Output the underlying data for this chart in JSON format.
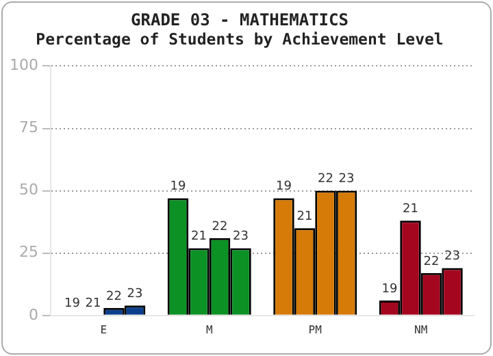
{
  "chart_data": {
    "type": "bar",
    "title": "GRADE 03 - MATHEMATICS",
    "subtitle": "Percentage of Students by Achievement Level",
    "categories": [
      "E",
      "M",
      "PM",
      "NM"
    ],
    "series": [
      {
        "name": "19",
        "colors": [
          "#0b3f8c",
          "#0b9124",
          "#d67b07",
          "#a5061f"
        ],
        "values": [
          0,
          47,
          47,
          6
        ]
      },
      {
        "name": "21",
        "colors": [
          "#0b3f8c",
          "#0b9124",
          "#d67b07",
          "#a5061f"
        ],
        "values": [
          0,
          27,
          35,
          38
        ]
      },
      {
        "name": "22",
        "colors": [
          "#0b3f8c",
          "#0b9124",
          "#d67b07",
          "#a5061f"
        ],
        "values": [
          3,
          31,
          50,
          17
        ]
      },
      {
        "name": "23",
        "colors": [
          "#0b3f8c",
          "#0b9124",
          "#d67b07",
          "#a5061f"
        ],
        "values": [
          4,
          27,
          50,
          19
        ]
      }
    ],
    "ylim": [
      0,
      100
    ],
    "yticks": [
      0,
      25,
      50,
      75,
      100
    ],
    "grid": "y",
    "legend": false
  }
}
